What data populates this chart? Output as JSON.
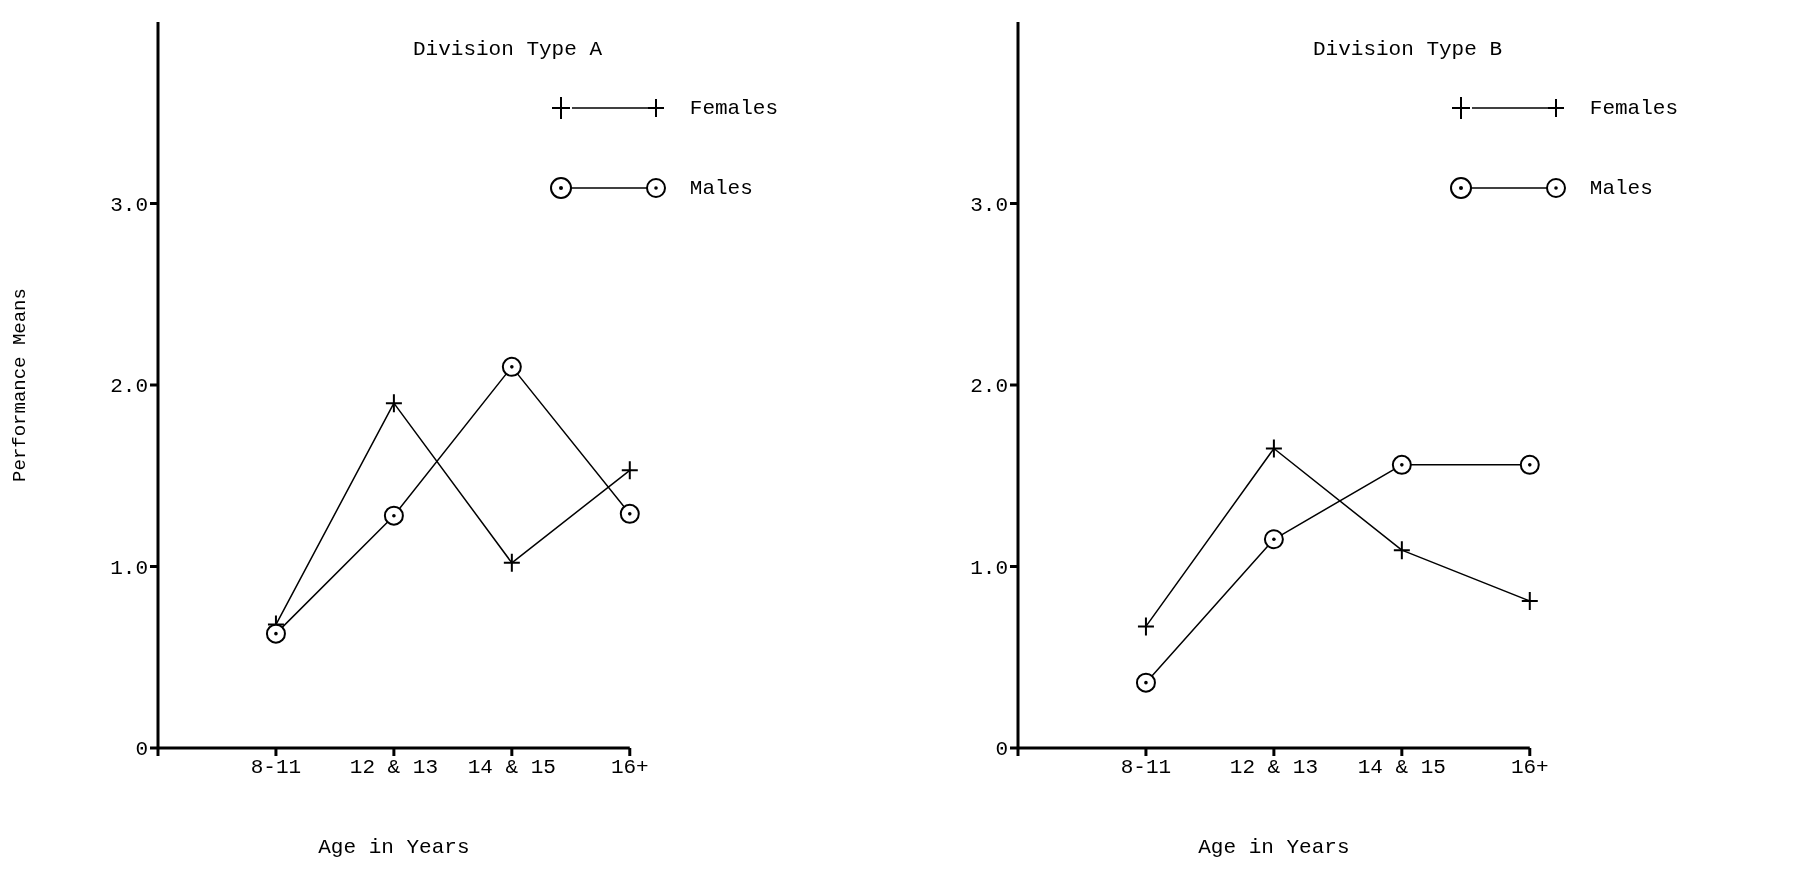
{
  "chart_data": [
    {
      "type": "line",
      "title": "Division Type A",
      "xlabel": "Age in Years",
      "ylabel": "Performance Means",
      "categories": [
        null,
        "8-11",
        "12 & 13",
        "14 & 15",
        "16+"
      ],
      "series": [
        {
          "name": "Females",
          "color": "#000000",
          "marker": "cross",
          "values": [
            null,
            0.68,
            1.9,
            1.02,
            1.53
          ]
        },
        {
          "name": "Males",
          "color": "#000000",
          "marker": "circle",
          "values": [
            null,
            0.63,
            1.28,
            2.1,
            1.29
          ]
        }
      ],
      "ylim": [
        0,
        4
      ],
      "yticks": [
        0,
        {
          "value": 1,
          "label": "1.0"
        },
        {
          "value": 2,
          "label": "2.0"
        },
        {
          "value": 3,
          "label": "3.0"
        }
      ],
      "grid": false,
      "legend": "top right"
    },
    {
      "type": "line",
      "title": "Division Type B",
      "xlabel": "Age in Years",
      "categories": [
        null,
        "8-11",
        "12 & 13",
        "14 & 15",
        "16+"
      ],
      "series": [
        {
          "name": "Females",
          "color": "#000000",
          "marker": "cross",
          "values": [
            null,
            0.67,
            1.65,
            1.09,
            0.81
          ]
        },
        {
          "name": "Males",
          "color": "#000000",
          "marker": "circle",
          "values": [
            null,
            0.36,
            1.15,
            1.56,
            1.56
          ]
        }
      ],
      "ylim": [
        0,
        4
      ],
      "yticks": [
        0,
        {
          "value": 1,
          "label": "1.0"
        },
        {
          "value": 2,
          "label": "2.0"
        },
        {
          "value": 3,
          "label": "3.0"
        }
      ],
      "grid": false,
      "legend": "top right"
    }
  ]
}
